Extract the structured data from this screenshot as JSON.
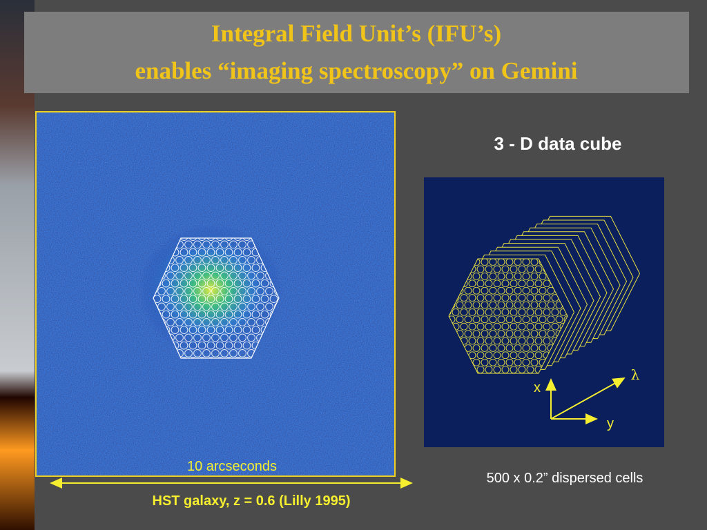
{
  "title": {
    "line1": "Integral Field Unit’s (IFU’s)",
    "line2": "enables “imaging spectroscopy” on Gemini"
  },
  "left_panel": {
    "scale_label": "10 arcseconds",
    "caption": "HST galaxy, z = 0.6  (Lilly 1995)"
  },
  "right_panel": {
    "heading": "3 - D data cube",
    "axes": {
      "x": "x",
      "y": "y",
      "lambda": "λ"
    },
    "caption": "500 x 0.2” dispersed cells"
  }
}
